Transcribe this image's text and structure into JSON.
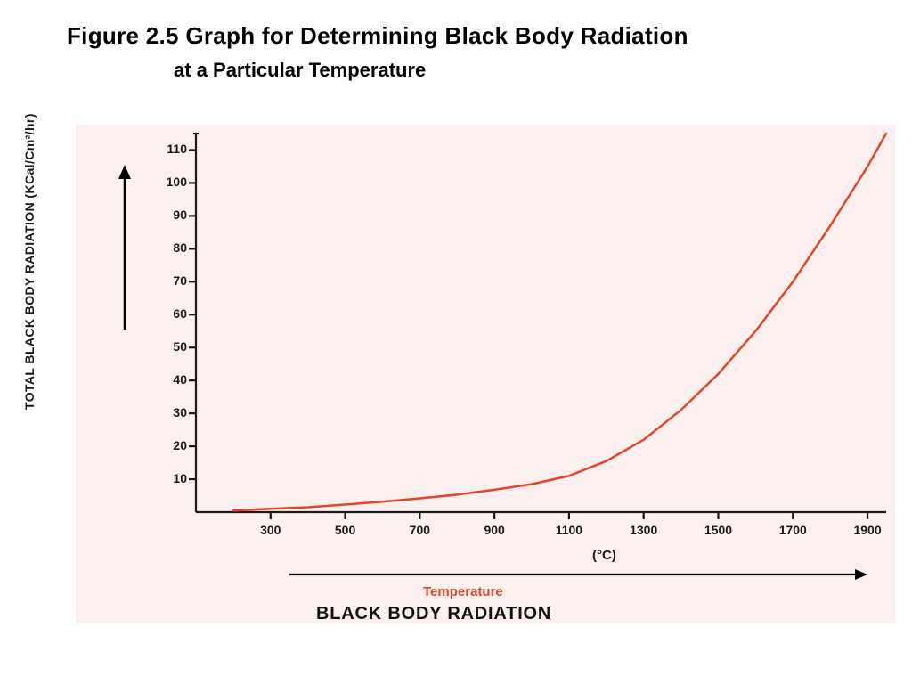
{
  "title": {
    "line1": "Figure  2.5 Graph  for Determining Black Body Radiation",
    "line2": "at a Particular Temperature",
    "line1_fontsize": 26,
    "line2_fontsize": 22,
    "color": "#000000"
  },
  "chart": {
    "type": "line",
    "background_color": "#fbf0ed",
    "axis_color": "#1a1a1a",
    "axis_stroke_width": 2.2,
    "tick_length": 8,
    "y_axis": {
      "label": "TOTAL BLACK BODY RADIATION (KCal/Cm²/hr)",
      "label_fontsize": 14,
      "label_color": "#1a1a1a",
      "ticks": [
        10,
        20,
        30,
        40,
        50,
        60,
        70,
        80,
        90,
        100,
        110
      ],
      "ylim_min": 0,
      "ylim_max": 115
    },
    "x_axis": {
      "main_label": "BLACK BODY RADIATION",
      "temp_label": "Temperature",
      "temp_label_color": "#d34b2e",
      "unit_label": "(°C)",
      "label_fontsize": 15,
      "main_label_fontsize": 20,
      "ticks": [
        300,
        500,
        700,
        900,
        1100,
        1300,
        1500,
        1700,
        1900
      ],
      "xlim_min": 100,
      "xlim_max": 1950
    },
    "curve": {
      "color": "#e3452c",
      "stroke_width": 2.5,
      "points_x": [
        200,
        300,
        400,
        500,
        600,
        700,
        800,
        900,
        1000,
        1100,
        1200,
        1300,
        1400,
        1500,
        1600,
        1700,
        1800,
        1900,
        1950
      ],
      "points_y": [
        0.5,
        1,
        1.5,
        2.3,
        3.2,
        4.2,
        5.3,
        6.8,
        8.5,
        11,
        15.5,
        22,
        31,
        42,
        55,
        70,
        87,
        105,
        115
      ]
    },
    "y_arrow": {
      "color": "#000000",
      "stroke_width": 2.5
    },
    "x_arrow": {
      "color": "#000000",
      "stroke_width": 2.2
    }
  }
}
